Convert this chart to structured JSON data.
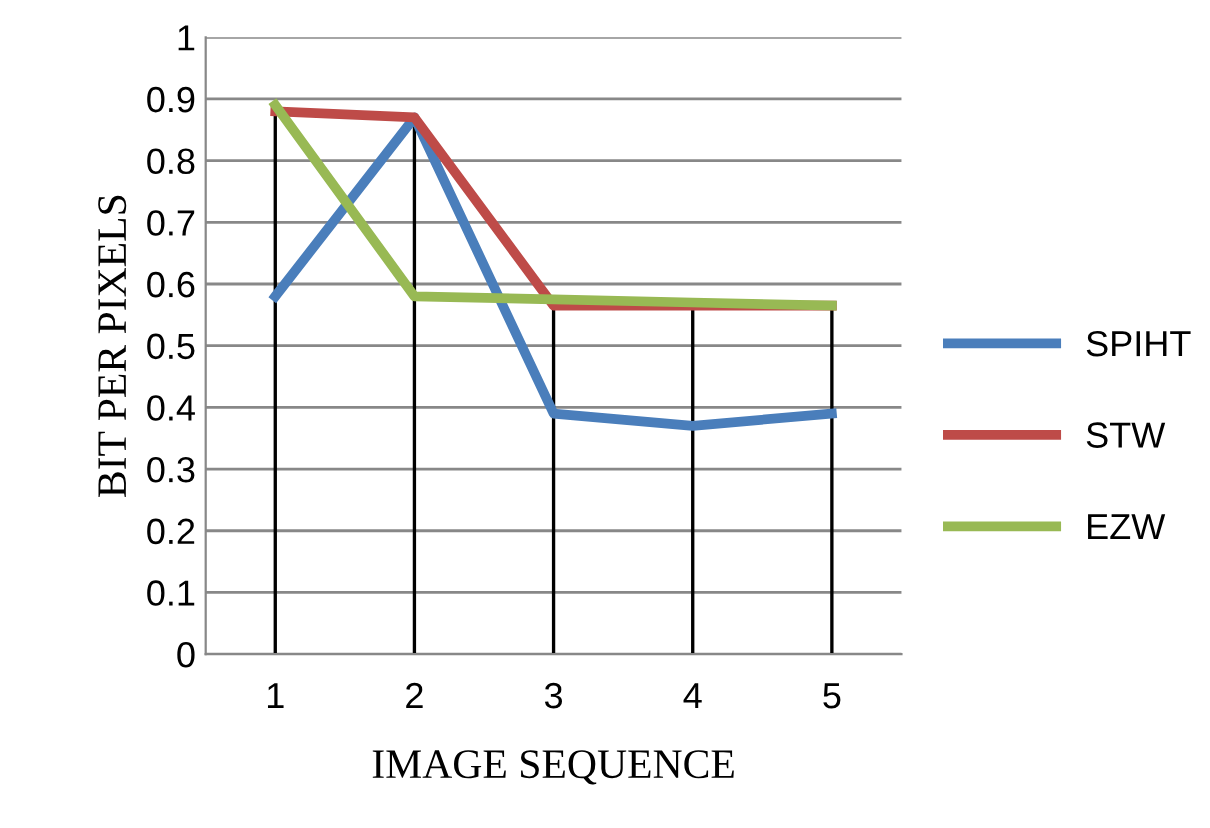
{
  "chart_data": {
    "type": "line",
    "xlabel": "IMAGE SEQUENCE",
    "ylabel": "BIT PER PIXELS",
    "categories": [
      "1",
      "2",
      "3",
      "4",
      "5"
    ],
    "series": [
      {
        "name": "SPIHT",
        "color": "#4a7ebb",
        "values": [
          0.58,
          0.87,
          0.39,
          0.37,
          0.39
        ]
      },
      {
        "name": "STW",
        "color": "#be4b48",
        "values": [
          0.88,
          0.87,
          0.565,
          0.565,
          0.565
        ]
      },
      {
        "name": "EZW",
        "color": "#98b954",
        "values": [
          0.89,
          0.58,
          0.575,
          0.57,
          0.565
        ]
      }
    ],
    "ref_lines": [
      {
        "axis": "x",
        "value": "1",
        "color": "#000000"
      },
      {
        "axis": "x",
        "value": "2",
        "color": "#000000"
      },
      {
        "axis": "x",
        "value": "3",
        "color": "#000000"
      },
      {
        "axis": "x",
        "value": "4",
        "color": "#000000"
      },
      {
        "axis": "x",
        "value": "5",
        "color": "#000000"
      }
    ],
    "ylim": [
      0,
      1
    ],
    "yticks": [
      0,
      0.1,
      0.2,
      0.3,
      0.4,
      0.5,
      0.6,
      0.7,
      0.8,
      0.9,
      1
    ],
    "grid": "y",
    "legend": "right",
    "marker": "none",
    "line_style": "solid"
  }
}
